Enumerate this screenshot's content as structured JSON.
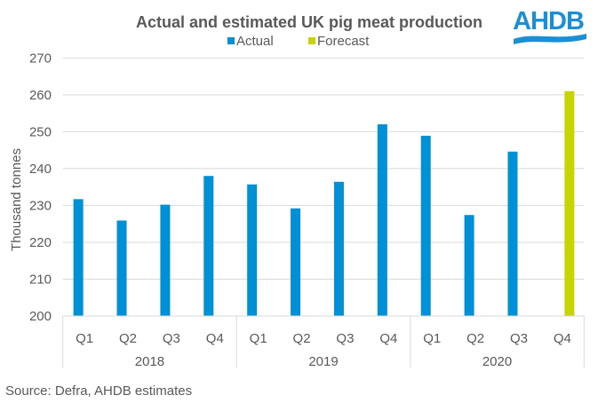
{
  "logo": {
    "text": "AHDB",
    "color": "#1a8fd6"
  },
  "source": "Source:  Defra, AHDB estimates",
  "chart_data": {
    "type": "bar",
    "title": "Actual and estimated UK  pig meat production",
    "xlabel": "",
    "ylabel": "Thousand  tonnes",
    "ylim": [
      200,
      270
    ],
    "yticks": [
      200,
      210,
      220,
      230,
      240,
      250,
      260,
      270
    ],
    "grid": true,
    "legend_position": "top",
    "categories": [
      "Q1",
      "Q2",
      "Q3",
      "Q4",
      "Q1",
      "Q2",
      "Q3",
      "Q4",
      "Q1",
      "Q2",
      "Q3",
      "Q4"
    ],
    "groups": [
      {
        "label": "2018",
        "span": 4
      },
      {
        "label": "2019",
        "span": 4
      },
      {
        "label": "2020",
        "span": 4
      }
    ],
    "series": [
      {
        "name": "Actual",
        "color": "#0090d6",
        "values": [
          231.7,
          225.9,
          230.2,
          238.0,
          235.7,
          229.2,
          236.4,
          252.0,
          248.9,
          227.4,
          244.6,
          null
        ]
      },
      {
        "name": "Forecast",
        "color": "#c8d400",
        "values": [
          null,
          null,
          null,
          null,
          null,
          null,
          null,
          null,
          null,
          null,
          null,
          261.0
        ]
      }
    ]
  }
}
